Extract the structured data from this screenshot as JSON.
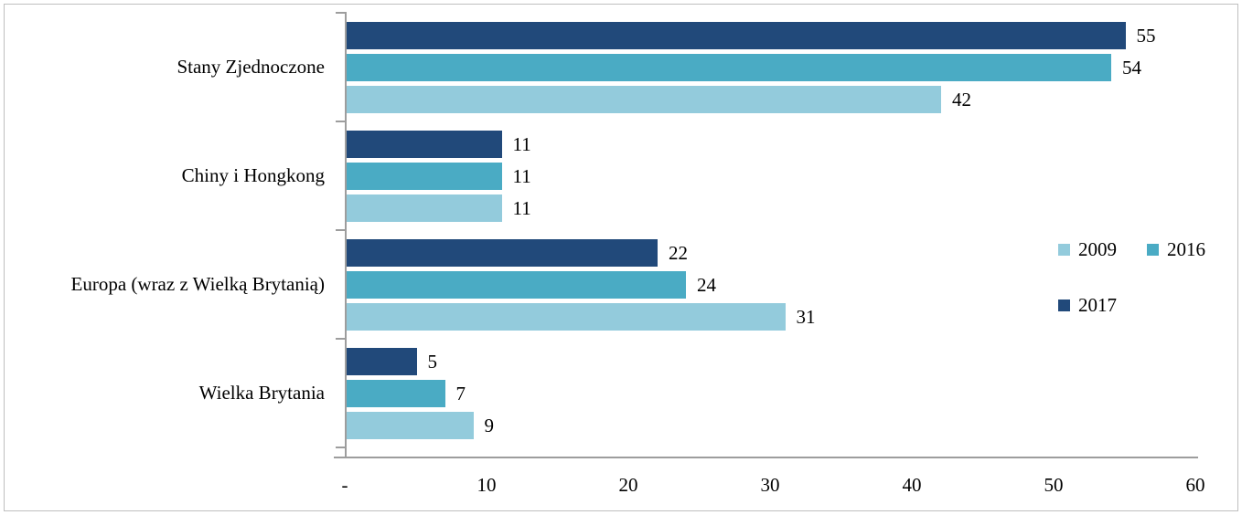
{
  "chart_data": {
    "type": "bar",
    "orientation": "horizontal",
    "title": "",
    "xlabel": "",
    "ylabel": "",
    "xlim": [
      0,
      60
    ],
    "grid": false,
    "data_labels": true,
    "categories": [
      "Stany Zjednoczone",
      "Chiny i Hongkong",
      "Europa (wraz z Wielką Brytanią)",
      "Wielka Brytania"
    ],
    "series": [
      {
        "name": "2017",
        "color": "#21497a",
        "values": [
          55,
          11,
          22,
          5
        ]
      },
      {
        "name": "2016",
        "color": "#4aabc4",
        "values": [
          54,
          11,
          24,
          7
        ]
      },
      {
        "name": "2009",
        "color": "#93cbdc",
        "values": [
          42,
          11,
          31,
          9
        ]
      }
    ],
    "bar_order_top_to_bottom": [
      "2017",
      "2016",
      "2009"
    ],
    "x_ticks": [
      "-",
      "10",
      "20",
      "30",
      "40",
      "50",
      "60"
    ],
    "x_tick_values": [
      0,
      10,
      20,
      30,
      40,
      50,
      60
    ],
    "legend": {
      "position": "right",
      "rows": [
        [
          "2009",
          "2016"
        ],
        [
          "2017"
        ]
      ],
      "entries": [
        {
          "label": "2009",
          "color": "#93cbdc"
        },
        {
          "label": "2016",
          "color": "#4aabc4"
        },
        {
          "label": "2017",
          "color": "#21497a"
        }
      ]
    }
  },
  "colors": {
    "background": "#ffffff",
    "frame_border": "#bfbfbf",
    "axis": "#9d9d9d",
    "text": "#000000"
  }
}
